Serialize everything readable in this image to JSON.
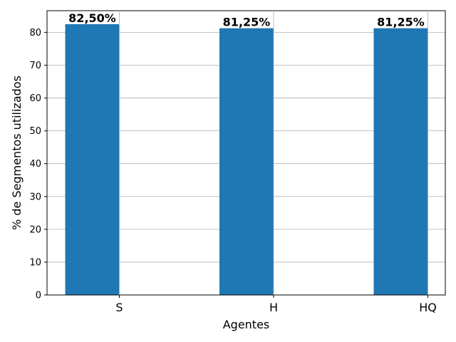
{
  "chart_data": {
    "type": "bar",
    "categories": [
      "S",
      "H",
      "HQ"
    ],
    "values": [
      82.5,
      81.25,
      81.25
    ],
    "data_labels": [
      "82,50%",
      "81,25%",
      "81,25%"
    ],
    "title": "",
    "xlabel": "Agentes",
    "ylabel": "% de Segmentos utilizados",
    "ylim": [
      0,
      86.6
    ],
    "yticks": [
      0,
      10,
      20,
      30,
      40,
      50,
      60,
      70,
      80
    ],
    "grid": "horizontal",
    "bar_color": "#1f77b4"
  }
}
